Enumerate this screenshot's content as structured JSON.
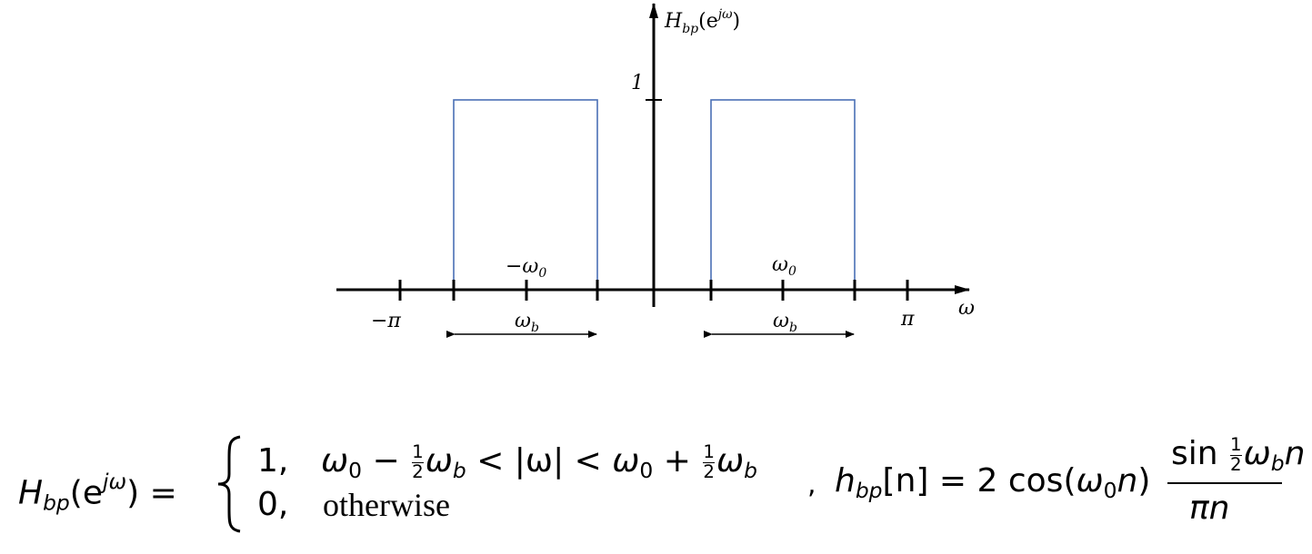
{
  "plot": {
    "y_axis_label": {
      "base": "H",
      "sub": "bp",
      "open": "(e",
      "sup": "jω",
      "close": ")"
    },
    "y_tick_label": "1",
    "x_axis_label": "ω",
    "x_tick_labels": {
      "minus_pi": "−π",
      "pi": "π"
    },
    "center_labels": [
      {
        "base": "−ω",
        "sub": "0"
      },
      {
        "base": "ω",
        "sub": "0"
      }
    ],
    "bandwidth_labels": [
      {
        "base": "ω",
        "sub": "b"
      },
      {
        "base": "ω",
        "sub": "b"
      }
    ]
  },
  "formula": {
    "lhs": {
      "base": "H",
      "sub": "bp",
      "open": "(e",
      "sup": "jω",
      "close": ")",
      "equals": "="
    },
    "cases": [
      {
        "value": "1,",
        "condition": {
          "w0": "ω",
          "w0_sub": "0",
          "minus": "−",
          "half_num": "1",
          "half_den": "2",
          "wb": "ω",
          "wb_sub": "b",
          "middle": "< |ω| <",
          "w0_2": "ω",
          "w0_2_sub": "0",
          "plus": "+",
          "half_num_2": "1",
          "half_den_2": "2",
          "wb_2": "ω",
          "wb_2_sub": "b"
        }
      },
      {
        "value": "0,",
        "condition": "otherwise"
      }
    ],
    "separator": ",",
    "impulse": {
      "base": "h",
      "sub": "bp",
      "arg": "[n]",
      "equals": "=",
      "coef": "2 cos(",
      "w": "ω",
      "w_sub": "0",
      "n": "n",
      "close": ")"
    },
    "fraction": {
      "sin": "sin",
      "half_num": "1",
      "half_den": "2",
      "w": "ω",
      "w_sub": "b",
      "n": "n",
      "den": "πn"
    }
  }
}
